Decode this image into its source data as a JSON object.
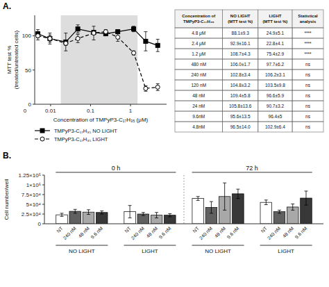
{
  "chart_data": [
    {
      "type": "line",
      "title": "A.",
      "xlabel": "Concentration of TMPyP3-C₁₇H₃₅ (μM)",
      "ylabel": "MTT test %\n(treated/untreated cells)",
      "x": [
        0.0048,
        0.0096,
        0.024,
        0.048,
        0.12,
        0.24,
        0.48,
        1.2,
        2.4,
        4.8
      ],
      "series": [
        {
          "name": "TMPyP3-C₁₇H₃₅ NO LIGHT",
          "color": "#000000",
          "marker": "square",
          "line_style": "solid",
          "values": [
            103,
            96,
            91,
            110,
            105,
            103,
            106,
            110,
            92,
            86
          ],
          "errors": [
            6,
            8,
            13,
            6,
            3,
            3,
            2,
            4,
            14,
            9
          ]
        },
        {
          "name": "TMPyP3-C₁₇H₃₅ LIGHT",
          "color": "#000000",
          "marker": "open-circle",
          "line_style": "dashed",
          "values": [
            100,
            96,
            89,
            96,
            104,
            106,
            98,
            75,
            23,
            25
          ],
          "errors": [
            6,
            5,
            3,
            6,
            10,
            3,
            6,
            3,
            4,
            5
          ]
        }
      ],
      "shaded_x": [
        0.018,
        1.5
      ],
      "log": "x",
      "xlim": [
        0.004,
        8
      ],
      "xticks": [
        0.01,
        0.1,
        1
      ],
      "ylim": [
        0,
        130
      ],
      "yticks": [
        0,
        50,
        100
      ],
      "annotations": [
        "0"
      ],
      "legend": "bottom",
      "grid": false
    },
    {
      "type": "table",
      "columns": [
        "Concentration of\nTMPyP3-C₁₇H₃₅",
        "NO LIGHT\n(MTT test %)",
        "LIGHT\n(MTT test %)",
        "Statistical\nanalysis"
      ],
      "rows": [
        [
          "4.8 μM",
          "88.1±9.3",
          "24.9±5.1",
          "****"
        ],
        [
          "2.4 μM",
          "92.9±16.1",
          "22.8±4.1",
          "****"
        ],
        [
          "1.2 μM",
          "108.7±4.3",
          "75.4±2.9",
          "****"
        ],
        [
          "480 nM",
          "106.0±1.7",
          "97.7±6.2",
          "ns"
        ],
        [
          "240 nM",
          "102.8±3.4",
          "106.2±3.1",
          "ns"
        ],
        [
          "120 nM",
          "104.8±3.2",
          "103.5±9.8",
          "ns"
        ],
        [
          "48 nM",
          "109.4±5.8",
          "96.6±5.9",
          "ns"
        ],
        [
          "24 nM",
          "105.8±13.6",
          "90.7±3.2",
          "ns"
        ],
        [
          "9.6nM",
          "95.6±13.5",
          "96.4±5",
          "ns"
        ],
        [
          "4.8nM",
          "96.5±14.0",
          "102.9±6.4",
          "ns"
        ]
      ]
    },
    {
      "type": "bar",
      "title": "B.",
      "ylabel": "Cell number/well",
      "categories": [
        "NO LIGHT",
        "LIGHT",
        "NO LIGHT",
        "LIGHT"
      ],
      "category_groups": [
        "0 h",
        "0 h",
        "72 h",
        "72 h"
      ],
      "series": [
        {
          "name": "NT",
          "color": "#ffffff",
          "values": [
            23000,
            31000,
            65000,
            55000
          ],
          "errors": [
            4000,
            16000,
            5000,
            6000
          ]
        },
        {
          "name": "240 nM",
          "color": "#606060",
          "values": [
            32000,
            25000,
            42000,
            31000
          ],
          "errors": [
            5000,
            4000,
            15000,
            4000
          ]
        },
        {
          "name": "48 nM",
          "color": "#a8a8a8",
          "values": [
            30000,
            22000,
            70000,
            43000
          ],
          "errors": [
            6000,
            7000,
            35000,
            8000
          ]
        },
        {
          "name": "9.6 nM",
          "color": "#383838",
          "values": [
            29000,
            22000,
            77000,
            66000
          ],
          "errors": [
            4000,
            4000,
            12000,
            18000
          ]
        }
      ],
      "ylim": [
        0,
        125000
      ],
      "yticks": [
        0,
        {
          "value": 25000,
          "label": "2.5×10⁴"
        },
        {
          "value": 50000,
          "label": "5×10⁴"
        },
        {
          "value": 75000,
          "label": "7.5×10⁴"
        },
        {
          "value": 100000,
          "label": "1×10⁵"
        },
        {
          "value": 125000,
          "label": "1.25×10⁵"
        }
      ],
      "grid": false
    }
  ]
}
